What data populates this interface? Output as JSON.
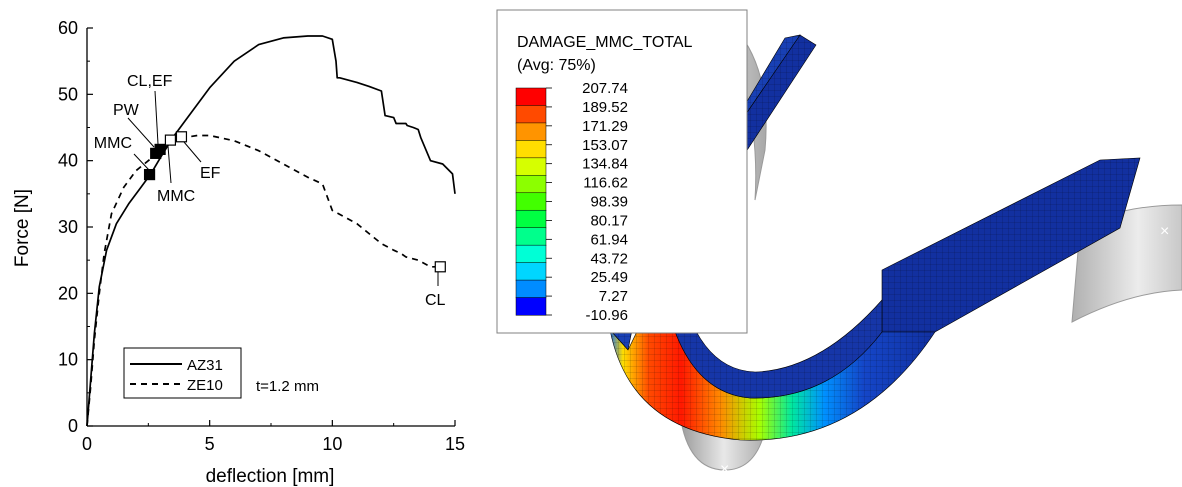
{
  "chart_data": {
    "type": "line",
    "xlabel": "deflection [mm]",
    "ylabel": "Force [N]",
    "xlim": [
      0,
      15
    ],
    "ylim": [
      0,
      60
    ],
    "x_ticks": [
      0,
      5,
      10,
      15
    ],
    "y_ticks": [
      0,
      10,
      20,
      30,
      40,
      50,
      60
    ],
    "grid": false,
    "legend_position": "bottom-left",
    "series": [
      {
        "name": "AZ31",
        "line_style": "solid",
        "x": [
          0,
          0.15,
          0.3,
          0.5,
          0.8,
          1.2,
          1.7,
          2.2,
          2.6,
          3.0,
          3.5,
          4.0,
          5.0,
          6.0,
          7.0,
          8.0,
          9.0,
          9.6,
          10.0,
          10.15,
          10.2,
          10.3,
          11.0,
          11.5,
          12.0,
          12.1,
          12.15,
          12.5,
          12.6,
          13.0,
          13.05,
          13.3,
          13.5,
          13.6,
          14.0,
          14.5,
          14.9,
          15.0
        ],
        "y": [
          0,
          7,
          14,
          21,
          26.5,
          30.5,
          33.5,
          36,
          38,
          40.5,
          43.5,
          46,
          51,
          55,
          57.5,
          58.5,
          58.8,
          58.8,
          58.3,
          55,
          52.5,
          52.5,
          51.8,
          51.2,
          50.5,
          48,
          46.8,
          46.5,
          45.6,
          45.6,
          45.3,
          45,
          44.7,
          43.5,
          40,
          39.5,
          38,
          35
        ]
      },
      {
        "name": "ZE10",
        "line_style": "dashed",
        "x": [
          0,
          0.15,
          0.3,
          0.5,
          0.7,
          1.0,
          1.5,
          2.0,
          2.5,
          3.0,
          3.5,
          4.0,
          4.5,
          5.0,
          6.0,
          7.0,
          8.0,
          9.0,
          9.6,
          9.8,
          10.0,
          10.5,
          11.0,
          11.5,
          12.0,
          12.5,
          12.8,
          13.0,
          13.5,
          14.0,
          14.5
        ],
        "y": [
          0,
          6,
          13,
          20,
          26,
          32,
          36,
          38.5,
          40,
          41.5,
          43,
          43.5,
          43.8,
          43.8,
          43,
          41.5,
          39.5,
          37.5,
          36.5,
          34.5,
          32.5,
          31.5,
          30.5,
          29,
          27.5,
          26.5,
          26,
          25.5,
          25,
          24,
          24
        ]
      }
    ],
    "markers": [
      {
        "series": "AZ31",
        "label": "MMC",
        "style": "filled",
        "x": 2.55,
        "y": 37.9
      },
      {
        "series": "AZ31",
        "label": "PW",
        "style": "filled",
        "x": 2.8,
        "y": 41.1
      },
      {
        "series": "AZ31",
        "label": "CL,EF",
        "style": "filled",
        "x": 2.98,
        "y": 41.7
      },
      {
        "series": "ZE10",
        "label": "MMC",
        "style": "open",
        "x": 3.4,
        "y": 43.1
      },
      {
        "series": "ZE10",
        "label": "EF",
        "style": "open",
        "x": 3.85,
        "y": 43.6
      },
      {
        "series": "ZE10",
        "label": "CL",
        "style": "open",
        "x": 14.4,
        "y": 24
      }
    ],
    "annotation": "t=1.2 mm"
  },
  "colorbar": {
    "title_line1": "DAMAGE_MMC_TOTAL",
    "title_line2": "(Avg: 75%)",
    "values": [
      "207.74",
      "189.52",
      "171.29",
      "153.07",
      "134.84",
      "116.62",
      "98.39",
      "80.17",
      "61.94",
      "43.72",
      "25.49",
      "7.27",
      "-10.96"
    ],
    "colors": [
      "#ff0000",
      "#ff4a00",
      "#ff9400",
      "#ffde00",
      "#d6ff00",
      "#8cff00",
      "#42ff00",
      "#00ff42",
      "#00ff8c",
      "#00ffd6",
      "#00d6ff",
      "#008cff",
      "#0000ff"
    ]
  },
  "palette": {
    "mesh_blue": "#1230a0",
    "holder_gray": "#d6d6d6"
  }
}
